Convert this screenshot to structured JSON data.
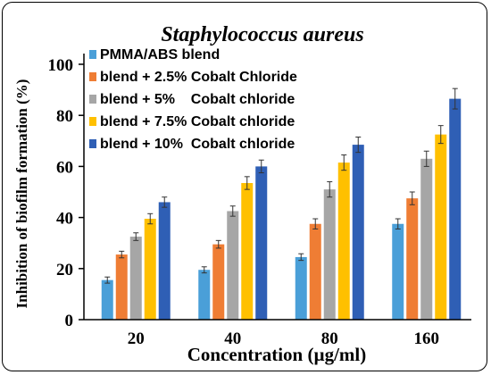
{
  "chart_data": {
    "type": "bar",
    "title": "Staphylococcus aureus",
    "xlabel": "Concentration (µg/ml)",
    "ylabel": "Inhibition of biofilm formation (%)",
    "ylim": [
      0,
      100
    ],
    "yticks": [
      "0",
      "20",
      "40",
      "60",
      "80",
      "100"
    ],
    "categories": [
      "20",
      "40",
      "80",
      "160"
    ],
    "legend_position": "top-left",
    "grid": false,
    "series": [
      {
        "name": "PMMA/ABS blend",
        "color": "#4a9fd8",
        "values": [
          15.5,
          19.5,
          24.5,
          37.5
        ],
        "errors": [
          1.2,
          1.2,
          1.3,
          2.0
        ]
      },
      {
        "name": "blend + 2.5% Cobalt Chloride",
        "color": "#ef7d34",
        "values": [
          25.5,
          29.5,
          37.5,
          47.5
        ],
        "errors": [
          1.3,
          1.5,
          2.0,
          2.5
        ]
      },
      {
        "name": "blend + 5%    Cobalt chloride",
        "color": "#a6a6a6",
        "values": [
          32.5,
          42.5,
          51,
          63
        ],
        "errors": [
          1.5,
          2.0,
          3.0,
          3.0
        ]
      },
      {
        "name": "blend + 7.5% Cobalt chloride",
        "color": "#ffc000",
        "values": [
          39.5,
          53.5,
          61.5,
          72.5
        ],
        "errors": [
          2.0,
          2.5,
          3.0,
          3.5
        ]
      },
      {
        "name": "blend + 10%  Cobalt chloride",
        "color": "#2f5fb5",
        "values": [
          46,
          60,
          68.5,
          86.5
        ],
        "errors": [
          2.0,
          2.5,
          3.0,
          4.0
        ]
      }
    ]
  }
}
